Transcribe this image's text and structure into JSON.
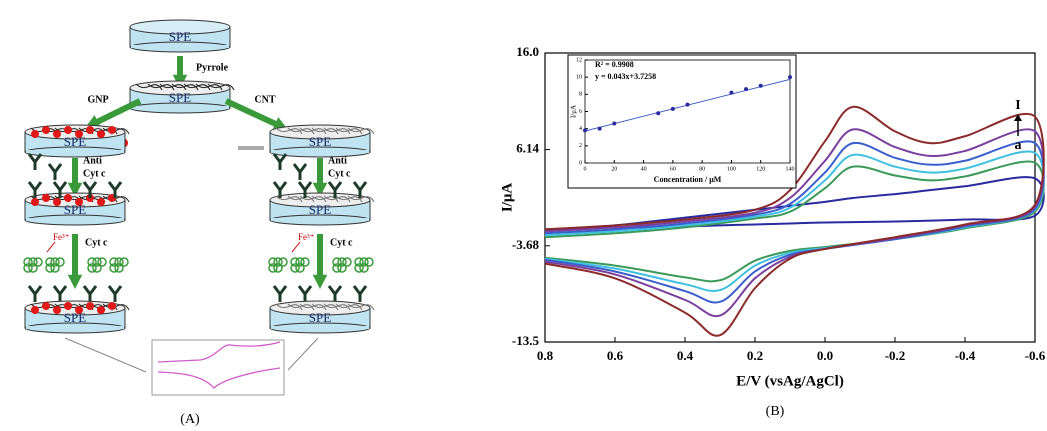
{
  "diagram": {
    "top": {
      "electrode": "SPE",
      "reagent": "Pyrrole",
      "modified_electrode": "SPE"
    },
    "left": {
      "modifier": "GNP",
      "antibody": [
        "Anti",
        "Cyt c"
      ],
      "ion": "Fe³⁺",
      "analyte": "Cyt c",
      "electrodes": [
        "SPE",
        "SPE",
        "SPE"
      ]
    },
    "right": {
      "modifier": "CNT",
      "antibody": [
        "Anti",
        "Cyt c"
      ],
      "ion": "Fe³⁺",
      "analyte": "Cyt c",
      "electrodes": [
        "SPE",
        "SPE",
        "SPE"
      ]
    }
  },
  "panel_captions": [
    "(A)",
    "(B)"
  ],
  "chart_data": [
    {
      "type": "line",
      "xlabel": "E/V (vsAg/AgCl)",
      "ylabel": "I/μA",
      "xlim": [
        0.8,
        -0.6
      ],
      "xticks": [
        0.8,
        0.6,
        0.4,
        0.2,
        {
          "value": 0,
          "label": "0.0"
        },
        -0.2,
        -0.4,
        -0.6
      ],
      "ylim": [
        -13.5,
        16
      ],
      "yticks": [
        {
          "value": 16,
          "label": "16.0"
        },
        6.14,
        -3.68,
        -13.5
      ],
      "annotations": [
        "I",
        "a"
      ],
      "x": [
        0.8,
        0.6,
        0.4,
        0.2,
        0.1,
        0.0,
        -0.08,
        -0.2,
        -0.3,
        -0.4,
        -0.6,
        -0.6,
        -0.4,
        -0.2,
        0.0,
        0.1,
        0.2,
        0.3,
        0.4,
        0.6,
        0.8
      ],
      "series": [
        {
          "color": "#2a2aa0",
          "values": [
            -2.2,
            -1.6,
            -0.8,
            0.0,
            0.4,
            0.8,
            1.2,
            1.6,
            2.0,
            2.4,
            3.2,
            -0.6,
            -1.0,
            -1.2,
            -1.3,
            -1.4,
            -1.5,
            -1.6,
            -1.7,
            -1.8,
            -2.0
          ]
        },
        {
          "color": "#3a9a5a",
          "values": [
            -2.8,
            -2.4,
            -1.8,
            -0.9,
            -0.2,
            2.2,
            4.4,
            3.5,
            3.0,
            3.4,
            4.8,
            -0.2,
            -1.9,
            -3.0,
            -3.8,
            -4.2,
            -5.2,
            -7.2,
            -6.9,
            -5.7,
            -4.9
          ]
        },
        {
          "color": "#40c0e0",
          "values": [
            -2.6,
            -2.2,
            -1.6,
            -0.7,
            0.2,
            3.0,
            5.6,
            4.4,
            3.8,
            4.2,
            5.8,
            0.0,
            -1.8,
            -3.0,
            -3.9,
            -4.4,
            -5.7,
            -8.2,
            -7.6,
            -6.0,
            -5.0
          ]
        },
        {
          "color": "#3a5fcd",
          "values": [
            -2.4,
            -2.0,
            -1.4,
            -0.5,
            0.6,
            3.8,
            6.8,
            5.3,
            4.6,
            5.0,
            6.8,
            0.1,
            -1.7,
            -3.0,
            -4.0,
            -4.6,
            -6.3,
            -9.4,
            -8.3,
            -6.3,
            -5.1
          ]
        },
        {
          "color": "#7b3f9e",
          "values": [
            -2.2,
            -1.8,
            -1.2,
            -0.3,
            1.2,
            5.0,
            8.2,
            6.4,
            5.5,
            6.0,
            8.0,
            0.3,
            -1.6,
            -2.9,
            -4.0,
            -4.8,
            -7.0,
            -10.8,
            -9.2,
            -6.6,
            -5.3
          ]
        },
        {
          "color": "#8b2a2a",
          "values": [
            -2.0,
            -1.6,
            -1.0,
            0.0,
            2.0,
            7.0,
            10.5,
            8.0,
            6.8,
            7.5,
            9.5,
            0.5,
            -1.5,
            -2.8,
            -4.0,
            -5.0,
            -8.0,
            -12.8,
            -10.5,
            -7.0,
            -5.5
          ]
        }
      ]
    },
    {
      "type": "scatter",
      "xlabel": "Concentration / μM",
      "ylabel": "I/μA",
      "annotations": [
        "R² = 0.9908",
        "y = 0.043x+3.7258"
      ],
      "xlim": [
        0,
        140
      ],
      "xticks": [
        0,
        20,
        40,
        60,
        80,
        100,
        120,
        140
      ],
      "ylim": [
        0,
        12
      ],
      "yticks": [
        0,
        2,
        4,
        6,
        8,
        10,
        12
      ],
      "color": "#2a2aa0",
      "trendline": {
        "slope": 0.043,
        "intercept": 3.7258
      },
      "x": [
        0,
        10,
        20,
        50,
        60,
        70,
        100,
        110,
        120,
        140
      ],
      "values": [
        3.8,
        4.0,
        4.6,
        5.8,
        6.3,
        6.8,
        8.2,
        8.6,
        9.0,
        10.0
      ]
    }
  ]
}
